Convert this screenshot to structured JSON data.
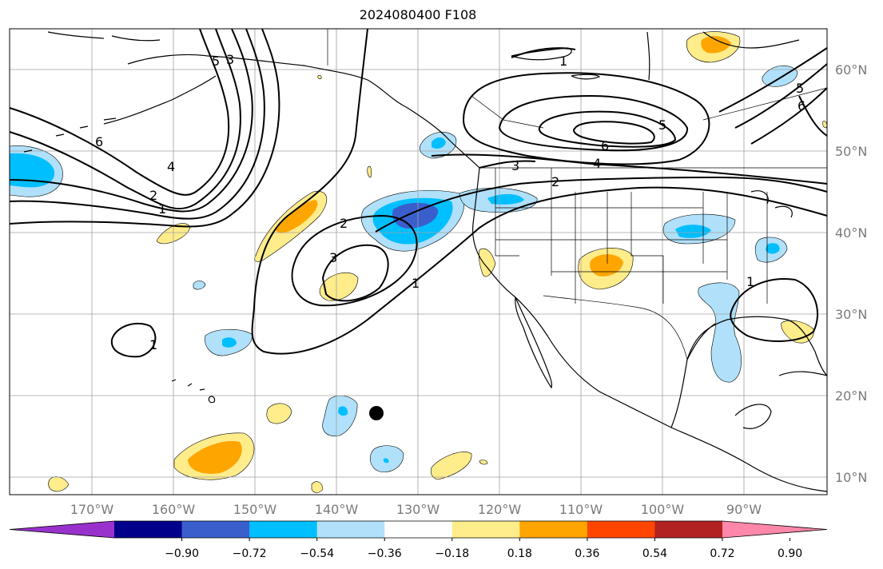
{
  "title": "2024080400 F108",
  "longitude_labels": [
    "170°W",
    "160°W",
    "150°W",
    "140°W",
    "130°W",
    "120°W",
    "110°W",
    "100°W",
    "90°W"
  ],
  "latitude_labels": [
    "60°N",
    "50°N",
    "40°N",
    "30°N",
    "20°N",
    "10°N"
  ],
  "colorbar": {
    "tick_labels": [
      "−0.90",
      "−0.72",
      "−0.54",
      "−0.36",
      "−0.18",
      "0.18",
      "0.36",
      "0.54",
      "0.72",
      "0.90"
    ],
    "colors": [
      "#9932cc",
      "#00008b",
      "#3a5fcd",
      "#00bfff",
      "#b0e0fa",
      "#ffffff",
      "#ffec8b",
      "#ffa500",
      "#ff4500",
      "#b22222",
      "#ff88aa"
    ]
  },
  "contour_labels": [
    "1",
    "2",
    "3",
    "4",
    "5",
    "6",
    "1",
    "2",
    "3",
    "1",
    "1",
    "2",
    "3",
    "4",
    "5",
    "6",
    "6",
    "5",
    "1"
  ],
  "marker": "black-dot"
}
